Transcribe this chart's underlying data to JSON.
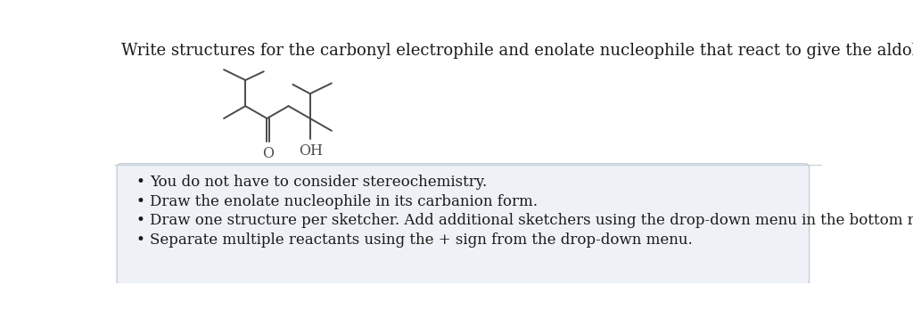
{
  "title_text": "Write structures for the carbonyl electrophile and enolate nucleophile that react to give the aldol below.",
  "background_color": "#ffffff",
  "title_fontsize": 13.0,
  "title_color": "#1a1a1a",
  "bullet_points": [
    "You do not have to consider stereochemistry.",
    "Draw the enolate nucleophile in its carbanion form.",
    "Draw one structure per sketcher. Add additional sketchers using the drop-down menu in the bottom right corner.",
    "Separate multiple reactants using the + sign from the drop-down menu."
  ],
  "bullet_fontsize": 12.0,
  "bullet_color": "#1a1a1a",
  "box_bg": "#eef2f7",
  "box_edge": "#b8c4d0",
  "molecule_color": "#4a4a4a",
  "label_O": "O",
  "label_OH": "OH",
  "label_fontsize": 11.5,
  "mol_lw": 1.4
}
